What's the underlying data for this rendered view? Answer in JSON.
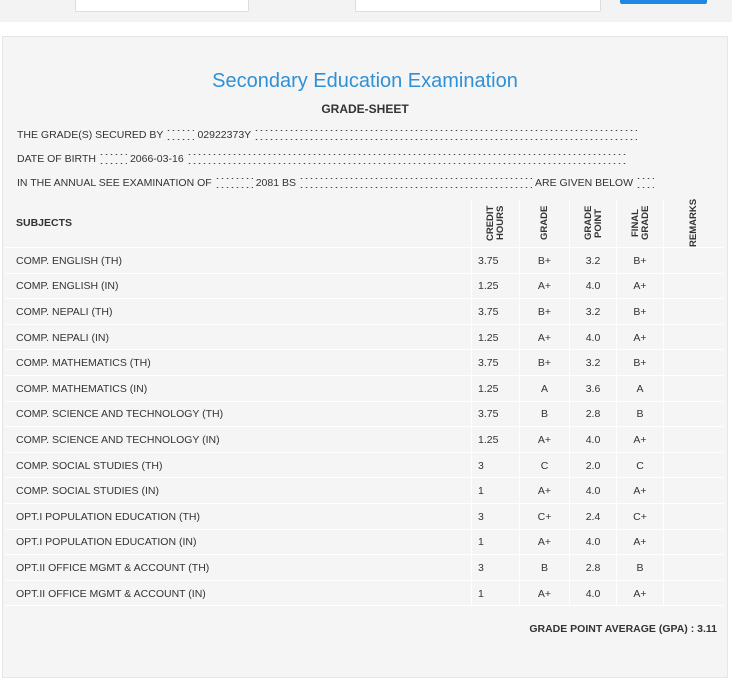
{
  "header": {
    "title": "Secondary Education Examination",
    "subtitle": "GRADE-SHEET"
  },
  "info": {
    "secured_label": "THE GRADE(S) SECURED BY",
    "symbol_no": "02922373Y",
    "dob_label": "DATE OF BIRTH",
    "dob": "2066-03-16",
    "exam_label": "IN THE ANNUAL SEE EXAMINATION OF",
    "exam_year": "2081 BS",
    "exam_suffix": "ARE GIVEN BELOW"
  },
  "table": {
    "headers": [
      "SUBJECTS",
      "CREDIT HOURS",
      "GRADE",
      "GRADE POINT",
      "FINAL GRADE",
      "REMARKS"
    ],
    "rows": [
      [
        "COMP. ENGLISH (TH)",
        "3.75",
        "B+",
        "3.2",
        "B+"
      ],
      [
        "COMP. ENGLISH (IN)",
        "1.25",
        "A+",
        "4.0",
        "A+"
      ],
      [
        "COMP. NEPALI (TH)",
        "3.75",
        "B+",
        "3.2",
        "B+"
      ],
      [
        "COMP. NEPALI (IN)",
        "1.25",
        "A+",
        "4.0",
        "A+"
      ],
      [
        "COMP. MATHEMATICS (TH)",
        "3.75",
        "B+",
        "3.2",
        "B+"
      ],
      [
        "COMP. MATHEMATICS (IN)",
        "1.25",
        "A",
        "3.6",
        "A"
      ],
      [
        "COMP. SCIENCE AND TECHNOLOGY (TH)",
        "3.75",
        "B",
        "2.8",
        "B"
      ],
      [
        "COMP. SCIENCE AND TECHNOLOGY (IN)",
        "1.25",
        "A+",
        "4.0",
        "A+"
      ],
      [
        "COMP. SOCIAL STUDIES (TH)",
        "3",
        "C",
        "2.0",
        "C"
      ],
      [
        "COMP. SOCIAL STUDIES (IN)",
        "1",
        "A+",
        "4.0",
        "A+"
      ],
      [
        "OPT.I POPULATION EDUCATION (TH)",
        "3",
        "C+",
        "2.4",
        "C+"
      ],
      [
        "OPT.I POPULATION EDUCATION (IN)",
        "1",
        "A+",
        "4.0",
        "A+"
      ],
      [
        "OPT.II OFFICE MGMT & ACCOUNT (TH)",
        "3",
        "B",
        "2.8",
        "B"
      ],
      [
        "OPT.II OFFICE MGMT & ACCOUNT (IN)",
        "1",
        "A+",
        "4.0",
        "A+"
      ]
    ]
  },
  "footer": {
    "gpa": "GRADE POINT AVERAGE (GPA) : 3.11"
  }
}
